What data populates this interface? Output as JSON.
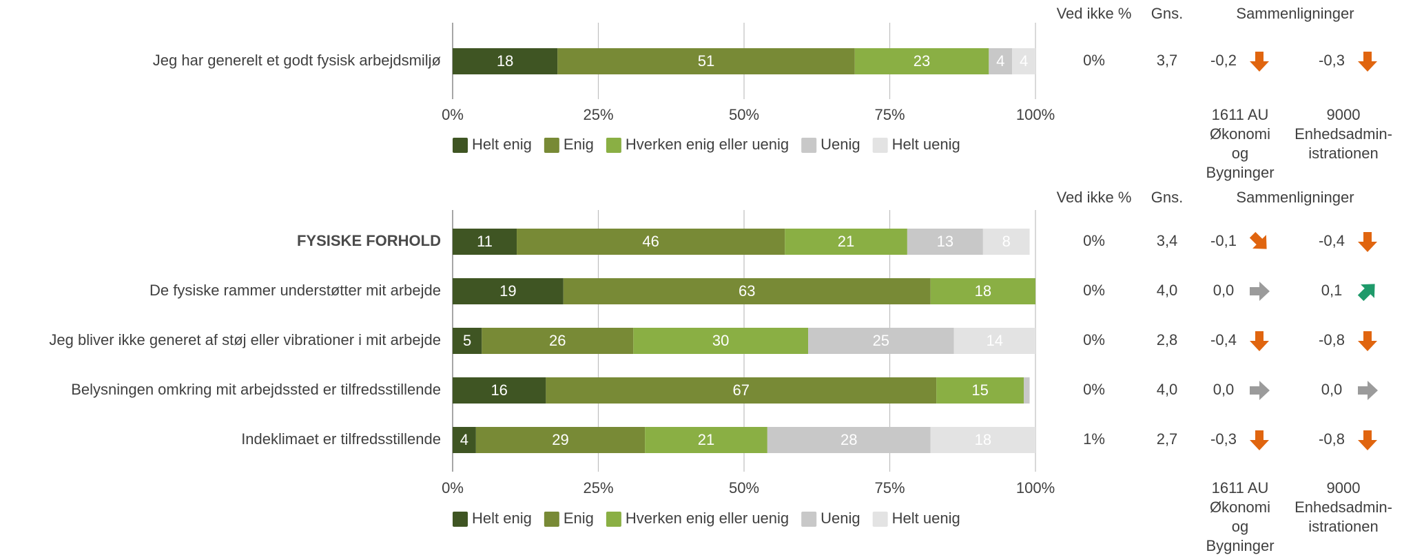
{
  "colors": {
    "helt_enig": "#3f5523",
    "enig": "#788a36",
    "hverken": "#8aaf44",
    "uenig": "#c8c8c8",
    "helt_uenig": "#e3e3e3",
    "arrow_down": "#e0650f",
    "arrow_right": "#9b9b9b",
    "arrow_up": "#1e9a6a"
  },
  "headers": {
    "ved_ikke": "Ved ikke %",
    "gns": "Gns.",
    "sammenligninger": "Sammenligninger"
  },
  "comparison_labels": [
    [
      "1611 AU",
      "Økonomi",
      "og",
      "Bygninger"
    ],
    [
      "9000",
      "Enhedsadmin-",
      "istrationen"
    ]
  ],
  "legend": [
    "Helt enig",
    "Enig",
    "Hverken enig eller uenig",
    "Uenig",
    "Helt uenig"
  ],
  "chart_data": [
    {
      "type": "bar",
      "orientation": "horizontal-stacked-100",
      "xlim": [
        0,
        100
      ],
      "xticks": [
        "0%",
        "25%",
        "50%",
        "75%",
        "100%"
      ],
      "series_names": [
        "Helt enig",
        "Enig",
        "Hverken enig eller uenig",
        "Uenig",
        "Helt uenig"
      ],
      "rows": [
        {
          "label": "Jeg har generelt et godt fysisk arbejdsmiljø",
          "bold": false,
          "values": [
            18,
            51,
            23,
            4,
            4
          ],
          "ved_ikke": "0%",
          "gns": "3,7",
          "comparisons": [
            {
              "value": "-0,2",
              "arrow": "down"
            },
            {
              "value": "-0,3",
              "arrow": "down"
            }
          ]
        }
      ]
    },
    {
      "type": "bar",
      "orientation": "horizontal-stacked-100",
      "xlim": [
        0,
        100
      ],
      "xticks": [
        "0%",
        "25%",
        "50%",
        "75%",
        "100%"
      ],
      "series_names": [
        "Helt enig",
        "Enig",
        "Hverken enig eller uenig",
        "Uenig",
        "Helt uenig"
      ],
      "rows": [
        {
          "label": "FYSISKE FORHOLD",
          "bold": true,
          "values": [
            11,
            46,
            21,
            13,
            8
          ],
          "ved_ikke": "0%",
          "gns": "3,4",
          "comparisons": [
            {
              "value": "-0,1",
              "arrow": "down-right"
            },
            {
              "value": "-0,4",
              "arrow": "down"
            }
          ]
        },
        {
          "label": "De fysiske rammer understøtter mit arbejde",
          "bold": false,
          "values": [
            19,
            63,
            18,
            0,
            0
          ],
          "ved_ikke": "0%",
          "gns": "4,0",
          "comparisons": [
            {
              "value": "0,0",
              "arrow": "right"
            },
            {
              "value": "0,1",
              "arrow": "up-right"
            }
          ]
        },
        {
          "label": "Jeg bliver ikke generet af støj eller vibrationer i mit arbejde",
          "bold": false,
          "values": [
            5,
            26,
            30,
            25,
            14
          ],
          "ved_ikke": "0%",
          "gns": "2,8",
          "comparisons": [
            {
              "value": "-0,4",
              "arrow": "down"
            },
            {
              "value": "-0,8",
              "arrow": "down"
            }
          ]
        },
        {
          "label": "Belysningen omkring mit arbejdssted er tilfredsstillende",
          "bold": false,
          "values": [
            16,
            67,
            15,
            1,
            0
          ],
          "ved_ikke": "0%",
          "gns": "4,0",
          "comparisons": [
            {
              "value": "0,0",
              "arrow": "right"
            },
            {
              "value": "0,0",
              "arrow": "right"
            }
          ]
        },
        {
          "label": "Indeklimaet er tilfredsstillende",
          "bold": false,
          "values": [
            4,
            29,
            21,
            28,
            18
          ],
          "ved_ikke": "1%",
          "gns": "2,7",
          "comparisons": [
            {
              "value": "-0,3",
              "arrow": "down"
            },
            {
              "value": "-0,8",
              "arrow": "down"
            }
          ]
        }
      ]
    }
  ]
}
